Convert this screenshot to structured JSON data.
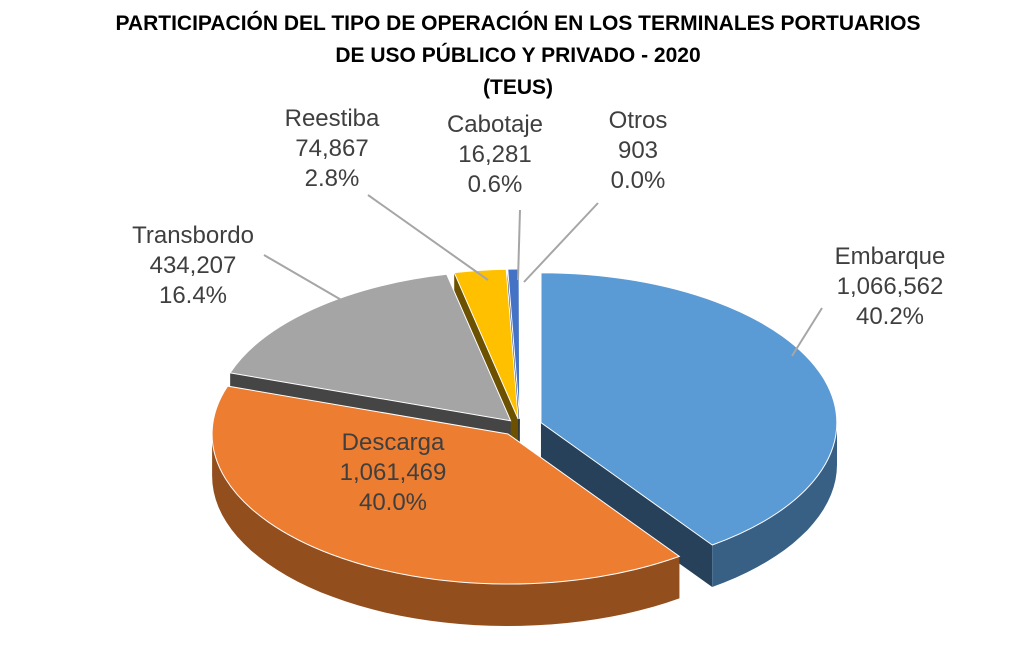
{
  "chart_data": {
    "type": "pie",
    "title_lines": [
      "PARTICIPACIÓN DEL TIPO DE OPERACIÓN EN LOS TERMINALES PORTUARIOS",
      "DE USO PÚBLICO Y PRIVADO - 2020",
      "(TEUS)"
    ],
    "slices": [
      {
        "name": "Embarque",
        "value": 1066562,
        "value_label": "1,066,562",
        "percent_label": "40.2%",
        "color": "#5b9bd5"
      },
      {
        "name": "Descarga",
        "value": 1061469,
        "value_label": "1,061,469",
        "percent_label": "40.0%",
        "color": "#ed7d31"
      },
      {
        "name": "Transbordo",
        "value": 434207,
        "value_label": "434,207",
        "percent_label": "16.4%",
        "color": "#a5a5a5"
      },
      {
        "name": "Reestiba",
        "value": 74867,
        "value_label": "74,867",
        "percent_label": "2.8%",
        "color": "#ffc000"
      },
      {
        "name": "Cabotaje",
        "value": 16281,
        "value_label": "16,281",
        "percent_label": "0.6%",
        "color": "#4472c4"
      },
      {
        "name": "Otros",
        "value": 903,
        "value_label": "903",
        "percent_label": "0.0%",
        "color": "#70ad47"
      }
    ],
    "style": "3d-exploded",
    "legend": "none"
  }
}
